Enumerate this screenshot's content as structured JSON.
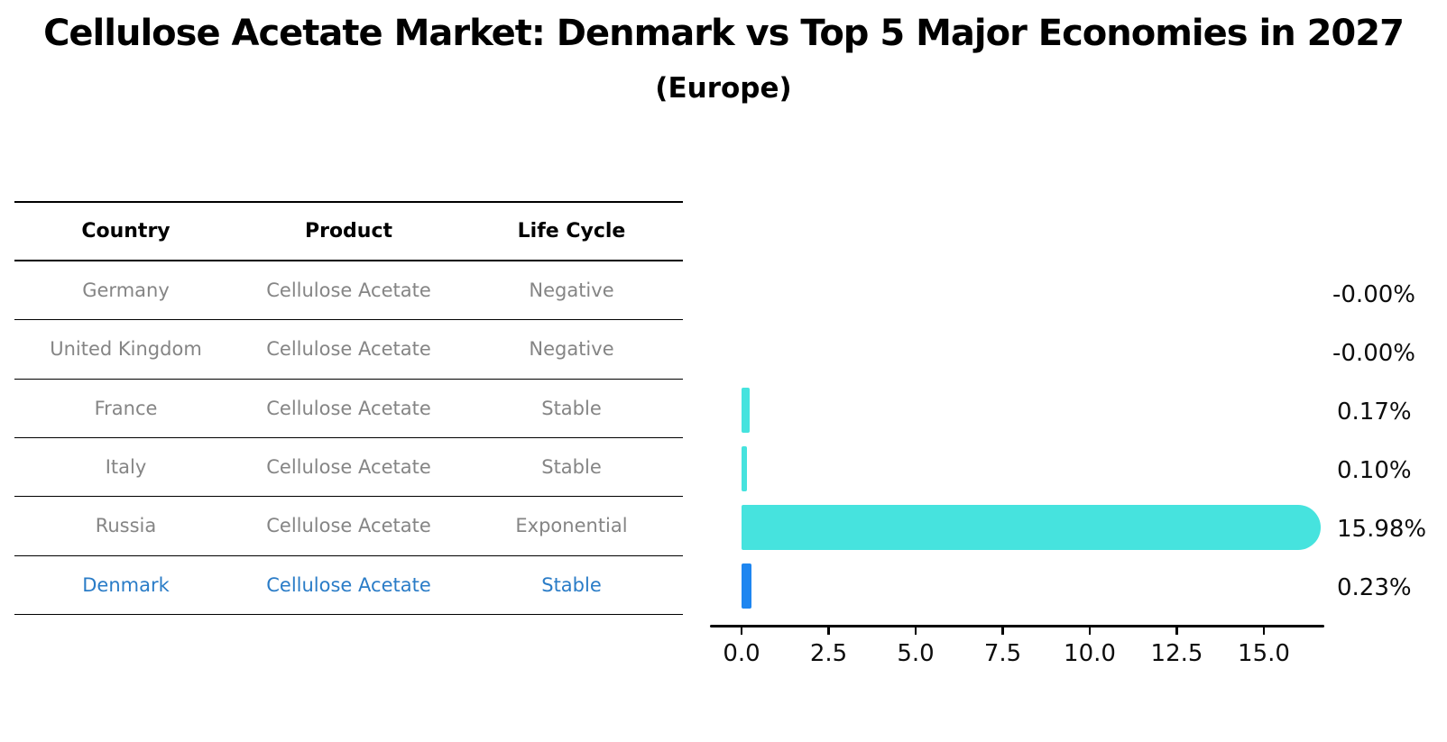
{
  "chart_data": {
    "type": "bar",
    "orientation": "horizontal",
    "title": "Cellulose Acetate Market: Denmark vs Top 5 Major Economies in 2027",
    "subtitle": "(Europe)",
    "categories": [
      "Germany",
      "United Kingdom",
      "France",
      "Italy",
      "Russia",
      "Denmark"
    ],
    "values": [
      -0.0,
      -0.0,
      0.17,
      0.1,
      15.98,
      0.23
    ],
    "value_labels": [
      "-0.00%",
      "-0.00%",
      "0.17%",
      "0.10%",
      "15.98%",
      "0.23%"
    ],
    "xtick_labels": [
      "0.0",
      "2.5",
      "5.0",
      "7.5",
      "10.0",
      "12.5",
      "15.0"
    ],
    "xtick_values": [
      0,
      2.5,
      5,
      7.5,
      10,
      12.5,
      15
    ],
    "xlim": [
      0,
      16.7
    ],
    "grid": false,
    "legend": null,
    "bar_color_default": "#46E3DE",
    "bar_color_highlight": "#1E86F0",
    "highlight_index": 5
  },
  "table": {
    "columns": [
      "Country",
      "Product",
      "Life Cycle"
    ],
    "rows": [
      [
        "Germany",
        "Cellulose Acetate",
        "Negative"
      ],
      [
        "United Kingdom",
        "Cellulose Acetate",
        "Negative"
      ],
      [
        "France",
        "Cellulose Acetate",
        "Stable"
      ],
      [
        "Italy",
        "Cellulose Acetate",
        "Stable"
      ],
      [
        "Russia",
        "Cellulose Acetate",
        "Exponential"
      ],
      [
        "Denmark",
        "Cellulose Acetate",
        "Stable"
      ]
    ],
    "text_color": "#858585",
    "highlight_row_index": 5,
    "highlight_color": "#2A7CC7"
  }
}
